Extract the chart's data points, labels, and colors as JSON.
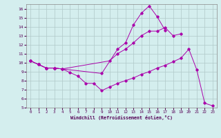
{
  "xlabel": "Windchill (Refroidissement éolien,°C)",
  "x": [
    0,
    1,
    2,
    3,
    4,
    5,
    6,
    7,
    8,
    9,
    10,
    11,
    12,
    13,
    14,
    15,
    16,
    17,
    18,
    19,
    20,
    21,
    22,
    23
  ],
  "series1": [
    10.2,
    9.8,
    9.4,
    9.4,
    null,
    null,
    null,
    null,
    null,
    8.8,
    null,
    11.5,
    12.2,
    14.2,
    15.5,
    16.3,
    15.1,
    13.6,
    null,
    null,
    null,
    null,
    null,
    null
  ],
  "series2": [
    10.2,
    9.8,
    9.4,
    9.4,
    9.3,
    null,
    null,
    null,
    null,
    null,
    10.2,
    11.0,
    11.5,
    12.2,
    13.0,
    13.5,
    13.5,
    13.9,
    13.0,
    13.2,
    null,
    null,
    null,
    null
  ],
  "series3": [
    10.2,
    9.8,
    9.4,
    9.4,
    9.3,
    8.9,
    8.5,
    7.7,
    7.7,
    6.9,
    7.3,
    7.7,
    8.0,
    8.3,
    8.7,
    9.0,
    9.4,
    9.7,
    10.1,
    10.5,
    11.5,
    9.2,
    5.5,
    5.2
  ],
  "line_color": "#aa00aa",
  "bg_color": "#d4eeee",
  "grid_color": "#b0c8c8",
  "ylim": [
    5,
    16.5
  ],
  "xlim": [
    -0.5,
    23.5
  ],
  "yticks": [
    5,
    6,
    7,
    8,
    9,
    10,
    11,
    12,
    13,
    14,
    15,
    16
  ],
  "xticks": [
    0,
    1,
    2,
    3,
    4,
    5,
    6,
    7,
    8,
    9,
    10,
    11,
    12,
    13,
    14,
    15,
    16,
    17,
    18,
    19,
    20,
    21,
    22,
    23
  ]
}
